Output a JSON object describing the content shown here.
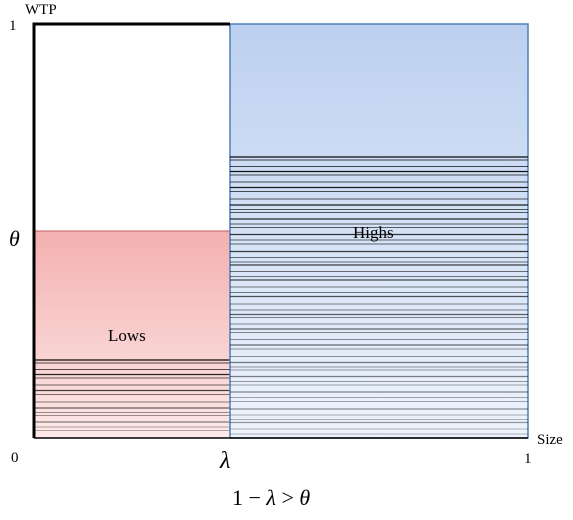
{
  "labels": {
    "y_axis": "WTP",
    "y_top": "1",
    "theta": "θ",
    "origin": "0",
    "lambda": "λ",
    "x_right": "1",
    "x_axis": "Size",
    "lows": "Lows",
    "highs": "Highs",
    "condition_lhs": "1 − ",
    "condition_lambda": "λ",
    "condition_gt": " > ",
    "condition_theta": "θ"
  },
  "colors": {
    "lows_top": "#f4b6b6",
    "lows_bottom": "#fde6e6",
    "lows_border": "#c06060",
    "highs_top": "#bcd2f0",
    "highs_bottom": "#eef4fd",
    "highs_border": "#4f7fb8",
    "axis": "#000000"
  }
}
